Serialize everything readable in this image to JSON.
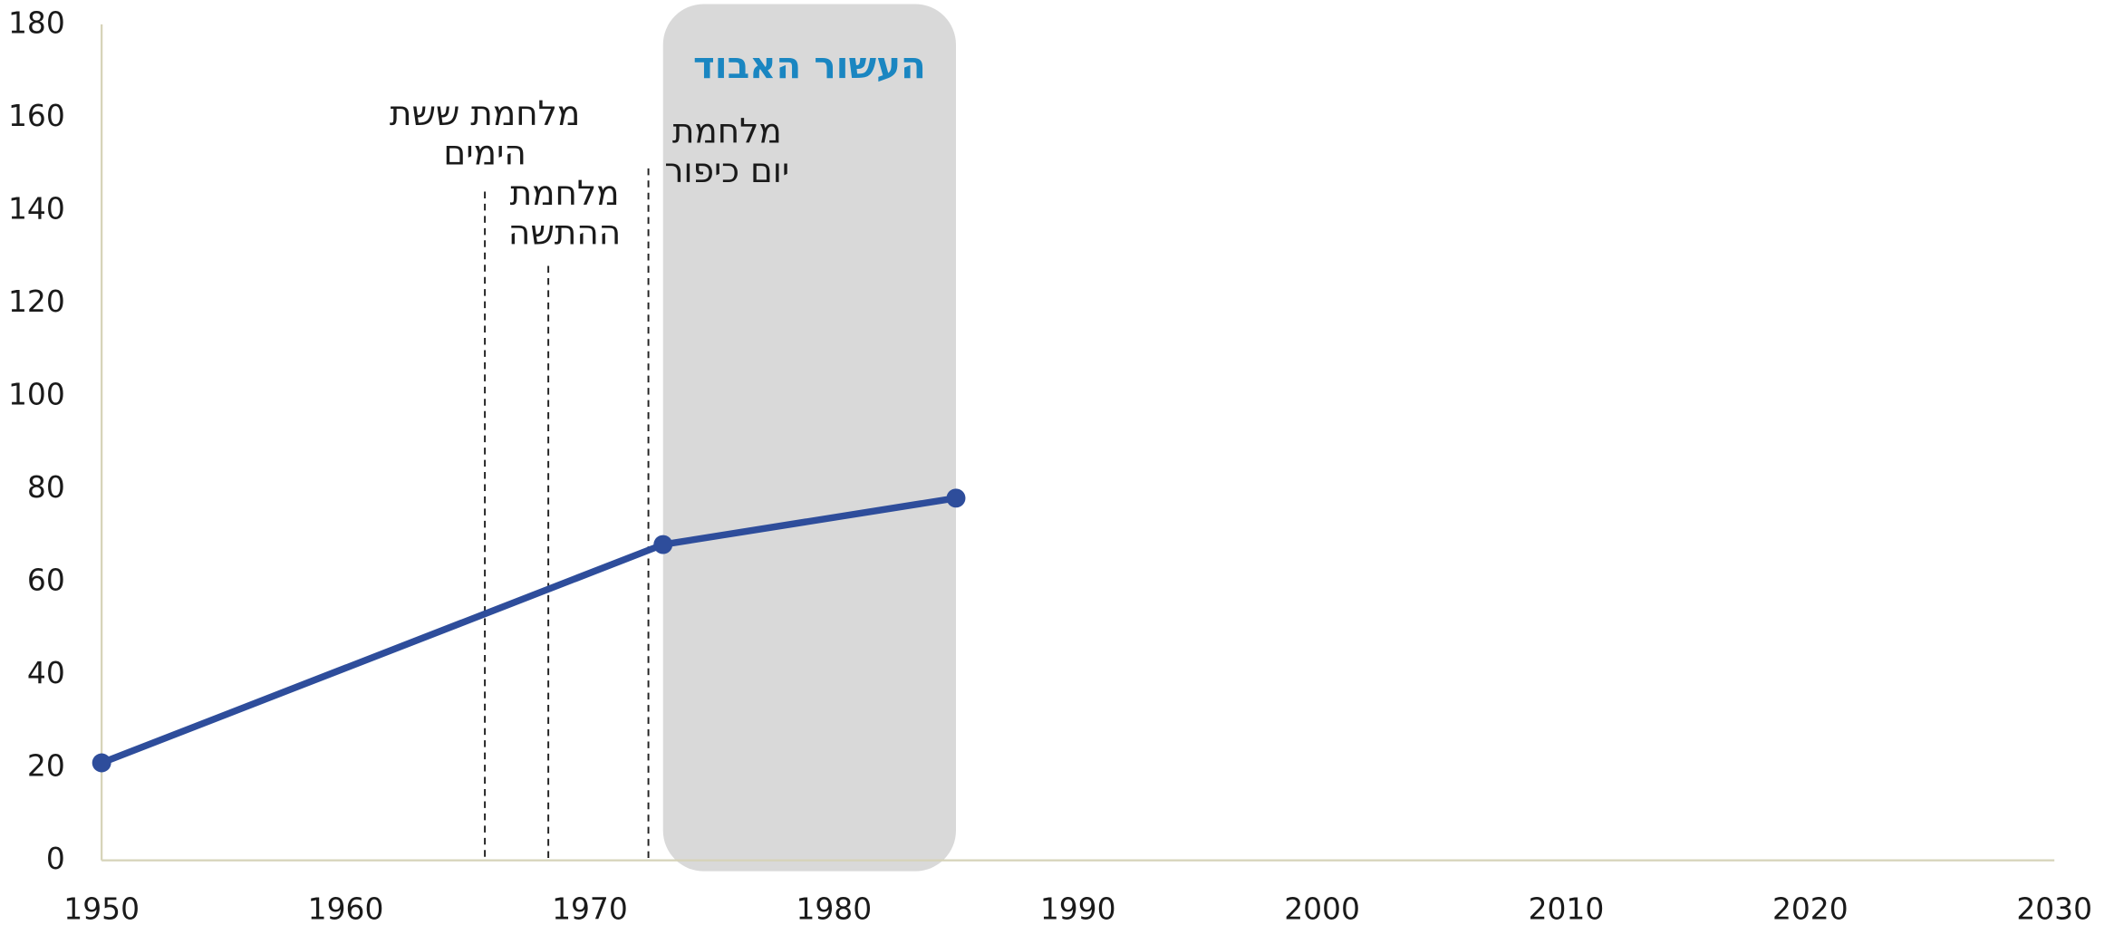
{
  "chart_data": {
    "type": "line",
    "x": [
      1950,
      1973,
      1985
    ],
    "series": [
      {
        "name": null,
        "color": "#2e4d9b",
        "values": [
          21,
          68,
          78
        ]
      }
    ],
    "xlim": [
      1950,
      2030
    ],
    "xticks": [
      1950,
      1960,
      1970,
      1980,
      1990,
      2000,
      2010,
      2020,
      2030
    ],
    "ylim": [
      0,
      180
    ],
    "yticks": [
      0,
      20,
      40,
      60,
      80,
      100,
      120,
      140,
      160,
      180
    ],
    "highlight": {
      "label": "העשור האבוד",
      "x": [
        1973,
        1985
      ],
      "color": "#d9d9d9",
      "label_color": "#1a86c1"
    },
    "events": [
      {
        "label": [
          "מלחמת ששת",
          "הימים"
        ],
        "x": 1965.7,
        "y": 144
      },
      {
        "label": [
          "מלחמת",
          "ההתשה"
        ],
        "x": 1968.3,
        "y": 128
      },
      {
        "label": [
          "מלחמת",
          "יום כיפור"
        ],
        "x": 1972.4,
        "y": 149
      }
    ]
  }
}
